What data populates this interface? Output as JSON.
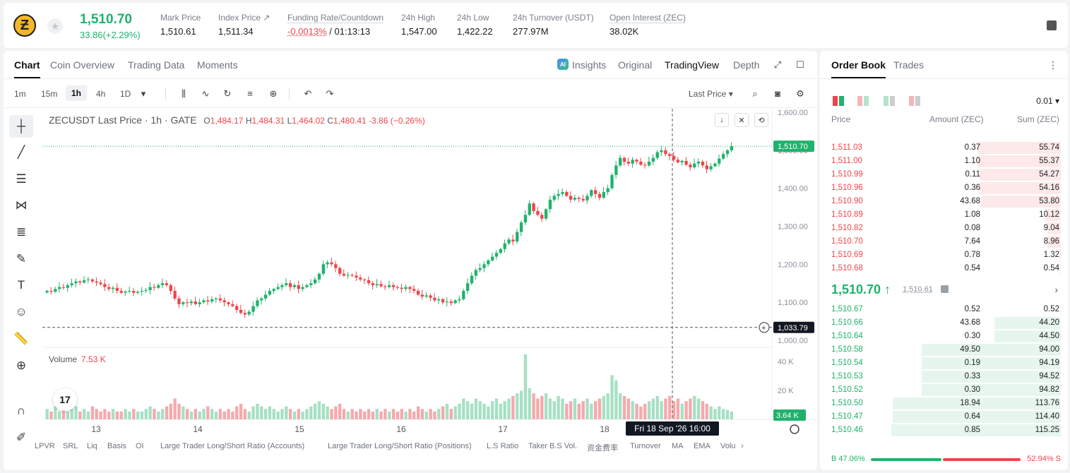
{
  "header": {
    "last_price": "1,510.70",
    "change": "33.86(+2.29%)",
    "stats": [
      {
        "label": "Mark Price",
        "value": "1,510.61"
      },
      {
        "label": "Index Price ↗",
        "value": "1,511.34"
      },
      {
        "label": "Funding Rate/Countdown",
        "value_neg": "-0.0013%",
        "value": " / 01:13:13"
      },
      {
        "label": "24h High",
        "value": "1,547.00"
      },
      {
        "label": "24h Low",
        "value": "1,422.22"
      },
      {
        "label": "24h Turnover (USDT)",
        "value": "277.97M"
      },
      {
        "label": "Open Interest (ZEC)",
        "value": "38.02K"
      }
    ]
  },
  "chart_tabs": [
    "Chart",
    "Coin Overview",
    "Trading Data",
    "Moments"
  ],
  "view_tabs": [
    "Insights",
    "Original",
    "TradingView",
    "Depth"
  ],
  "intervals": [
    "1m",
    "15m",
    "1h",
    "4h",
    "1D"
  ],
  "price_source": "Last Price",
  "legend": {
    "symbol": "ZECUSDT Last Price · 1h · GATE",
    "o": "1,484.17",
    "h": "1,484.31",
    "l": "1,464.02",
    "c": "1,480.41",
    "chg": "-3.86 (−0.26%)"
  },
  "volume": {
    "label": "Volume",
    "value": "7.53 K"
  },
  "price_axis": [
    "1,600.00",
    "1,500.00",
    "1,400.00",
    "1,300.00",
    "1,200.00",
    "1,100.00",
    "1,000.00"
  ],
  "volume_axis": [
    "40 K",
    "20 K"
  ],
  "time_axis": [
    "13",
    "14",
    "15",
    "16",
    "17",
    "18"
  ],
  "tags": {
    "last": "1,510.70",
    "crosshair_price": "1,033.79",
    "volume_last": "3.64 K",
    "crosshair_time": "Fri 18 Sep '26   16:00"
  },
  "indicators": [
    "LPVR",
    "SRL",
    "Liq",
    "Basis",
    "OI",
    "Large Trader Long/Short Ratio (Accounts)",
    "Large Trader Long/Short Ratio (Positions)",
    "L.S Ratio",
    "Taker B.S Vol.",
    "资金费率",
    "Turnover",
    "MA",
    "EMA",
    "Volu"
  ],
  "chart_data": {
    "type": "candlestick",
    "ylim": [
      1000,
      1600
    ],
    "closes": [
      1130,
      1128,
      1135,
      1140,
      1138,
      1145,
      1150,
      1155,
      1152,
      1158,
      1160,
      1155,
      1152,
      1148,
      1140,
      1135,
      1138,
      1130,
      1125,
      1128,
      1130,
      1125,
      1128,
      1130,
      1132,
      1140,
      1138,
      1145,
      1150,
      1145,
      1130,
      1110,
      1095,
      1100,
      1098,
      1102,
      1095,
      1100,
      1105,
      1102,
      1108,
      1110,
      1105,
      1100,
      1095,
      1090,
      1080,
      1072,
      1068,
      1075,
      1090,
      1105,
      1110,
      1120,
      1130,
      1135,
      1140,
      1145,
      1150,
      1140,
      1145,
      1135,
      1140,
      1145,
      1150,
      1160,
      1175,
      1200,
      1205,
      1200,
      1190,
      1175,
      1170,
      1172,
      1170,
      1165,
      1160,
      1158,
      1150,
      1145,
      1148,
      1142,
      1140,
      1145,
      1140,
      1138,
      1135,
      1140,
      1135,
      1130,
      1120,
      1115,
      1118,
      1112,
      1105,
      1108,
      1100,
      1102,
      1098,
      1105,
      1108,
      1130,
      1150,
      1170,
      1185,
      1190,
      1200,
      1210,
      1220,
      1230,
      1240,
      1255,
      1265,
      1260,
      1285,
      1310,
      1330,
      1360,
      1340,
      1330,
      1320,
      1345,
      1370,
      1380,
      1385,
      1390,
      1380,
      1370,
      1375,
      1372,
      1368,
      1380,
      1395,
      1385,
      1375,
      1390,
      1400,
      1435,
      1460,
      1480,
      1470,
      1465,
      1475,
      1470,
      1462,
      1460,
      1470,
      1480,
      1495,
      1500,
      1490,
      1485,
      1475,
      1468,
      1472,
      1462,
      1455,
      1465,
      1470,
      1460,
      1450,
      1458,
      1465,
      1478,
      1490,
      1500,
      1510.7
    ],
    "volumes": [
      4,
      3,
      5,
      3,
      4,
      3,
      4,
      5,
      3,
      4,
      3,
      5,
      4,
      3,
      4,
      3,
      4,
      3,
      3,
      4,
      3,
      4,
      3,
      3,
      4,
      5,
      4,
      3,
      4,
      5,
      6,
      8,
      6,
      5,
      4,
      3,
      4,
      3,
      4,
      5,
      4,
      3,
      4,
      3,
      4,
      3,
      5,
      6,
      4,
      3,
      5,
      6,
      5,
      4,
      5,
      4,
      3,
      4,
      5,
      4,
      3,
      4,
      3,
      4,
      5,
      6,
      7,
      6,
      5,
      4,
      5,
      6,
      4,
      3,
      4,
      3,
      4,
      3,
      4,
      3,
      4,
      3,
      4,
      3,
      4,
      3,
      4,
      3,
      4,
      3,
      5,
      4,
      3,
      4,
      3,
      4,
      5,
      6,
      4,
      5,
      6,
      8,
      7,
      6,
      8,
      7,
      6,
      5,
      7,
      8,
      6,
      7,
      8,
      9,
      10,
      11,
      25,
      12,
      10,
      8,
      9,
      10,
      8,
      7,
      9,
      8,
      6,
      7,
      8,
      6,
      7,
      8,
      6,
      7,
      8,
      9,
      10,
      17,
      15,
      10,
      9,
      8,
      7,
      6,
      5,
      6,
      7,
      8,
      9,
      7,
      8,
      9,
      7,
      8,
      6,
      7,
      8,
      9,
      8,
      7,
      6,
      5,
      4,
      5,
      4,
      3.64
    ]
  },
  "order_book": {
    "tabs": [
      "Order Book",
      "Trades"
    ],
    "precision": "0.01",
    "headers": [
      "Price",
      "Amount (ZEC)",
      "Sum (ZEC)"
    ],
    "asks": [
      {
        "p": "1,511.03",
        "a": "0.37",
        "s": "55.74",
        "d": 0.49
      },
      {
        "p": "1,511.00",
        "a": "1.10",
        "s": "55.37",
        "d": 0.49
      },
      {
        "p": "1,510.99",
        "a": "0.11",
        "s": "54.27",
        "d": 0.48
      },
      {
        "p": "1,510.96",
        "a": "0.36",
        "s": "54.16",
        "d": 0.48
      },
      {
        "p": "1,510.90",
        "a": "43.68",
        "s": "53.80",
        "d": 0.47
      },
      {
        "p": "1,510.89",
        "a": "1.08",
        "s": "10.12",
        "d": 0.09
      },
      {
        "p": "1,510.82",
        "a": "0.08",
        "s": "9.04",
        "d": 0.08
      },
      {
        "p": "1,510.70",
        "a": "7.64",
        "s": "8.96",
        "d": 0.08
      },
      {
        "p": "1,510.69",
        "a": "0.78",
        "s": "1.32",
        "d": 0.01
      },
      {
        "p": "1,510.68",
        "a": "0.54",
        "s": "0.54",
        "d": 0.005
      }
    ],
    "mid_price": "1,510.70 ↑",
    "mark_price": "1,510.61",
    "bids": [
      {
        "p": "1,510.67",
        "a": "0.52",
        "s": "0.52",
        "d": 0.005
      },
      {
        "p": "1,510.66",
        "a": "43.68",
        "s": "44.20",
        "d": 0.39
      },
      {
        "p": "1,510.64",
        "a": "0.30",
        "s": "44.50",
        "d": 0.39
      },
      {
        "p": "1,510.58",
        "a": "49.50",
        "s": "94.00",
        "d": 0.82
      },
      {
        "p": "1,510.54",
        "a": "0.19",
        "s": "94.19",
        "d": 0.82
      },
      {
        "p": "1,510.53",
        "a": "0.33",
        "s": "94.52",
        "d": 0.82
      },
      {
        "p": "1,510.52",
        "a": "0.30",
        "s": "94.82",
        "d": 0.82
      },
      {
        "p": "1,510.50",
        "a": "18.94",
        "s": "113.76",
        "d": 0.99
      },
      {
        "p": "1,510.47",
        "a": "0.64",
        "s": "114.40",
        "d": 0.99
      },
      {
        "p": "1,510.46",
        "a": "0.85",
        "s": "115.25",
        "d": 1.0
      }
    ],
    "ratio_buy": "B 47.06%",
    "ratio_sell": "52.94% S"
  },
  "colors": {
    "up": "#20b26c",
    "down": "#ef454a",
    "ask_bg": "#fde9ea",
    "bid_bg": "#e6f6ee"
  }
}
